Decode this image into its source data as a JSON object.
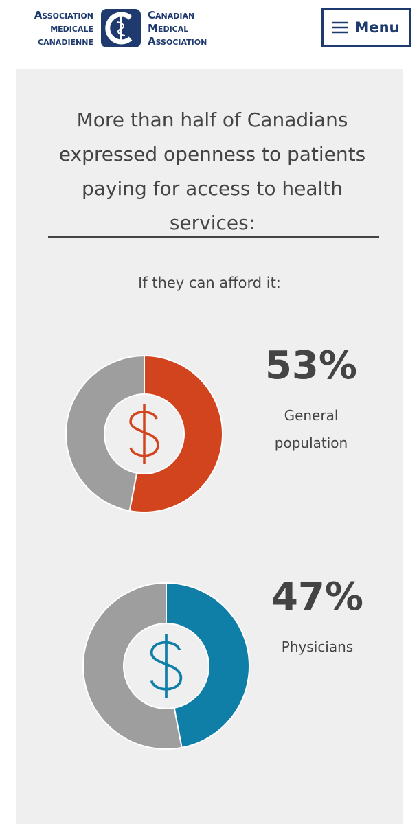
{
  "header": {
    "logo_fr": [
      "Association",
      "médicale",
      "canadienne"
    ],
    "logo_en": [
      "Canadian",
      "Medical",
      "Association"
    ],
    "menu": "Menu"
  },
  "infographic": {
    "title": "More than half of Canadians expressed openness to patients paying for access to health services:",
    "subtitle": "If they can afford it:"
  },
  "chart_data": [
    {
      "type": "donut",
      "categories": [
        "General population",
        null
      ],
      "values": [
        53,
        47
      ],
      "value_labels": [
        "53%",
        null
      ],
      "colors": [
        "#d2441e",
        "#9e9e9e"
      ]
    },
    {
      "type": "donut",
      "categories": [
        "Physicians",
        null
      ],
      "values": [
        47,
        53
      ],
      "value_labels": [
        "47%",
        null
      ],
      "colors": [
        "#0f7fa8",
        "#9e9e9e"
      ]
    }
  ]
}
